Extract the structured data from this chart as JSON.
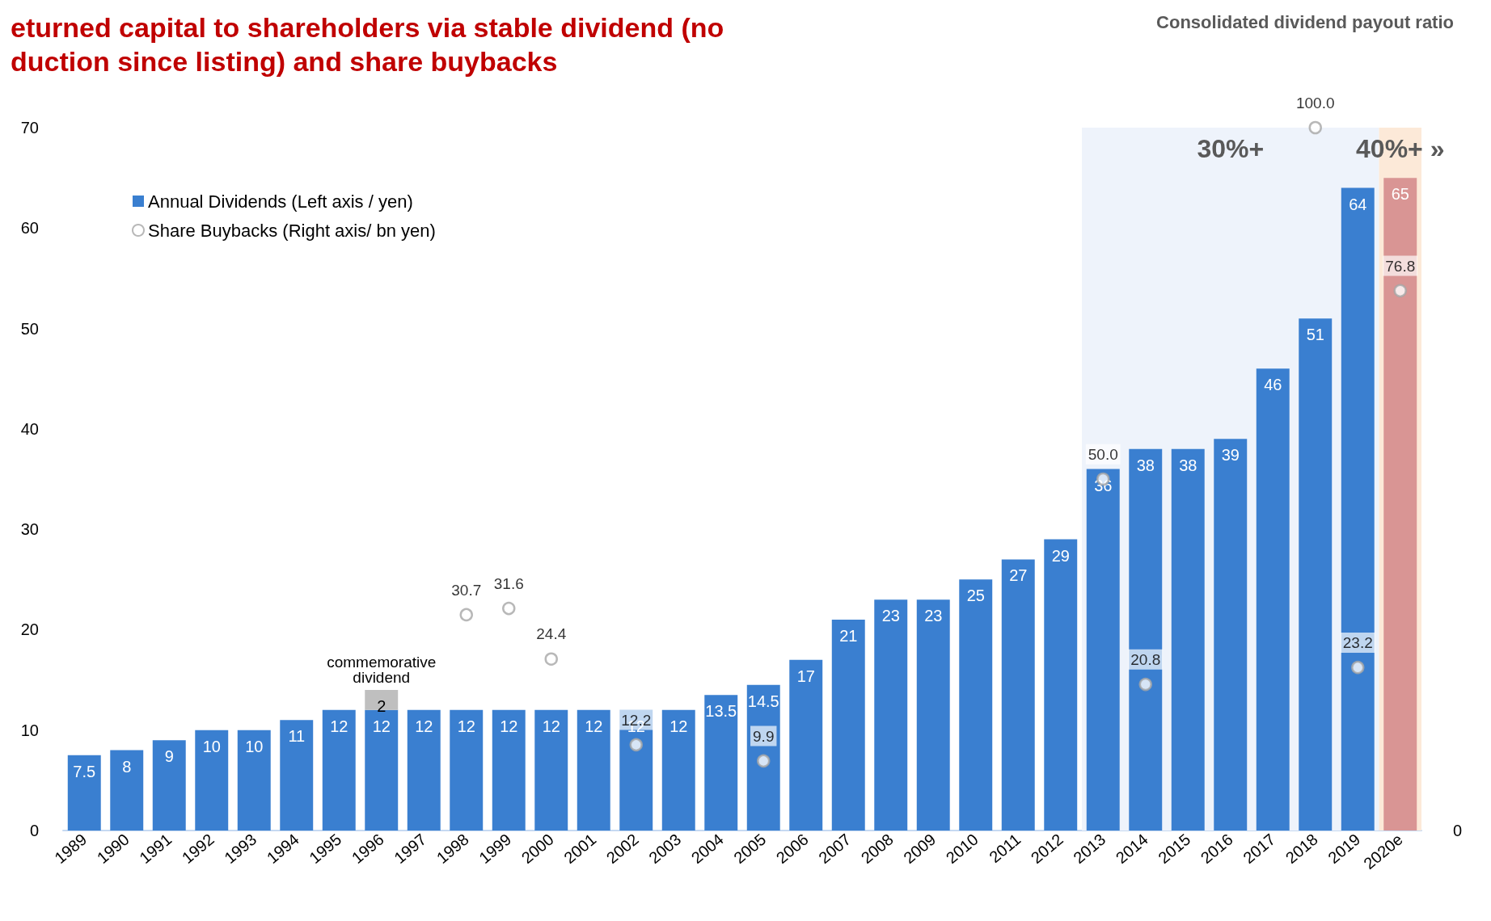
{
  "chart_data": {
    "type": "bar",
    "title": "eturned capital to shareholders via stable dividend (no\nduction since listing) and share buybacks",
    "categories": [
      "1989",
      "1990",
      "1991",
      "1992",
      "1993",
      "1994",
      "1995",
      "1996",
      "1997",
      "1998",
      "1999",
      "2000",
      "2001",
      "2002",
      "2003",
      "2004",
      "2005",
      "2006",
      "2007",
      "2008",
      "2009",
      "2010",
      "2011",
      "2012",
      "2013",
      "2014",
      "2015",
      "2016",
      "2017",
      "2018",
      "2019",
      "2020e"
    ],
    "stacked": true,
    "data_labels": true,
    "legend": "top left",
    "grid": false,
    "ylim": [
      0,
      70
    ],
    "yticks": [
      0,
      10,
      20,
      30,
      40,
      50,
      60,
      70
    ],
    "y2lim": [
      0,
      100
    ],
    "series": [
      {
        "name": "Annual Dividends (Left axis / yen)",
        "color": "#3a7fd0",
        "colors": [
          "#3a7fd0",
          "#3a7fd0",
          "#3a7fd0",
          "#3a7fd0",
          "#3a7fd0",
          "#3a7fd0",
          "#3a7fd0",
          "#3a7fd0",
          "#3a7fd0",
          "#3a7fd0",
          "#3a7fd0",
          "#3a7fd0",
          "#3a7fd0",
          "#3a7fd0",
          "#3a7fd0",
          "#3a7fd0",
          "#3a7fd0",
          "#3a7fd0",
          "#3a7fd0",
          "#3a7fd0",
          "#3a7fd0",
          "#3a7fd0",
          "#3a7fd0",
          "#3a7fd0",
          "#3a7fd0",
          "#3a7fd0",
          "#3a7fd0",
          "#3a7fd0",
          "#3a7fd0",
          "#3a7fd0",
          "#3a7fd0",
          "#d99594"
        ],
        "values": [
          7.5,
          8,
          9,
          10,
          10,
          11,
          12,
          12,
          12,
          12,
          12,
          12,
          12,
          12,
          12,
          13.5,
          14.5,
          17,
          21,
          23,
          23,
          25,
          27,
          29,
          36,
          38,
          38,
          39,
          46,
          51,
          64,
          65
        ]
      },
      {
        "color": "#bfbfbf",
        "values": [
          null,
          null,
          null,
          null,
          null,
          null,
          null,
          2,
          null,
          null,
          null,
          null,
          null,
          null,
          null,
          null,
          null,
          null,
          null,
          null,
          null,
          null,
          null,
          null,
          null,
          null,
          null,
          null,
          null,
          null,
          null,
          null
        ]
      },
      {
        "name": "Share Buybacks (Right axis/ bn yen)",
        "type": "scatter",
        "axis": "y2",
        "marker": "circle",
        "color": "#a6a6a6",
        "values": [
          null,
          null,
          null,
          null,
          null,
          null,
          null,
          null,
          null,
          30.7,
          31.6,
          24.4,
          null,
          12.2,
          null,
          null,
          9.9,
          null,
          null,
          null,
          null,
          null,
          null,
          null,
          50.0,
          20.8,
          null,
          null,
          null,
          100.0,
          23.2,
          76.8
        ],
        "value_labels": [
          null,
          null,
          null,
          null,
          null,
          null,
          null,
          null,
          null,
          "30.7",
          "31.6",
          "24.4",
          null,
          "12.2",
          null,
          null,
          "9.9",
          null,
          null,
          null,
          null,
          null,
          null,
          null,
          "50.0",
          "20.8",
          null,
          null,
          null,
          "100.0",
          "23.2",
          "76.8"
        ]
      }
    ],
    "bands": [
      {
        "axis": "x",
        "from": "2013",
        "to": "2019",
        "label": "30%+",
        "color": "#eef3fb"
      },
      {
        "axis": "x",
        "from": "2020e",
        "to": "2020e",
        "label": "40%+ »",
        "color": "#fce9d8"
      }
    ],
    "annotations": [
      "Consolidated dividend payout ratio",
      "commemorative\ndividend",
      "0"
    ]
  }
}
